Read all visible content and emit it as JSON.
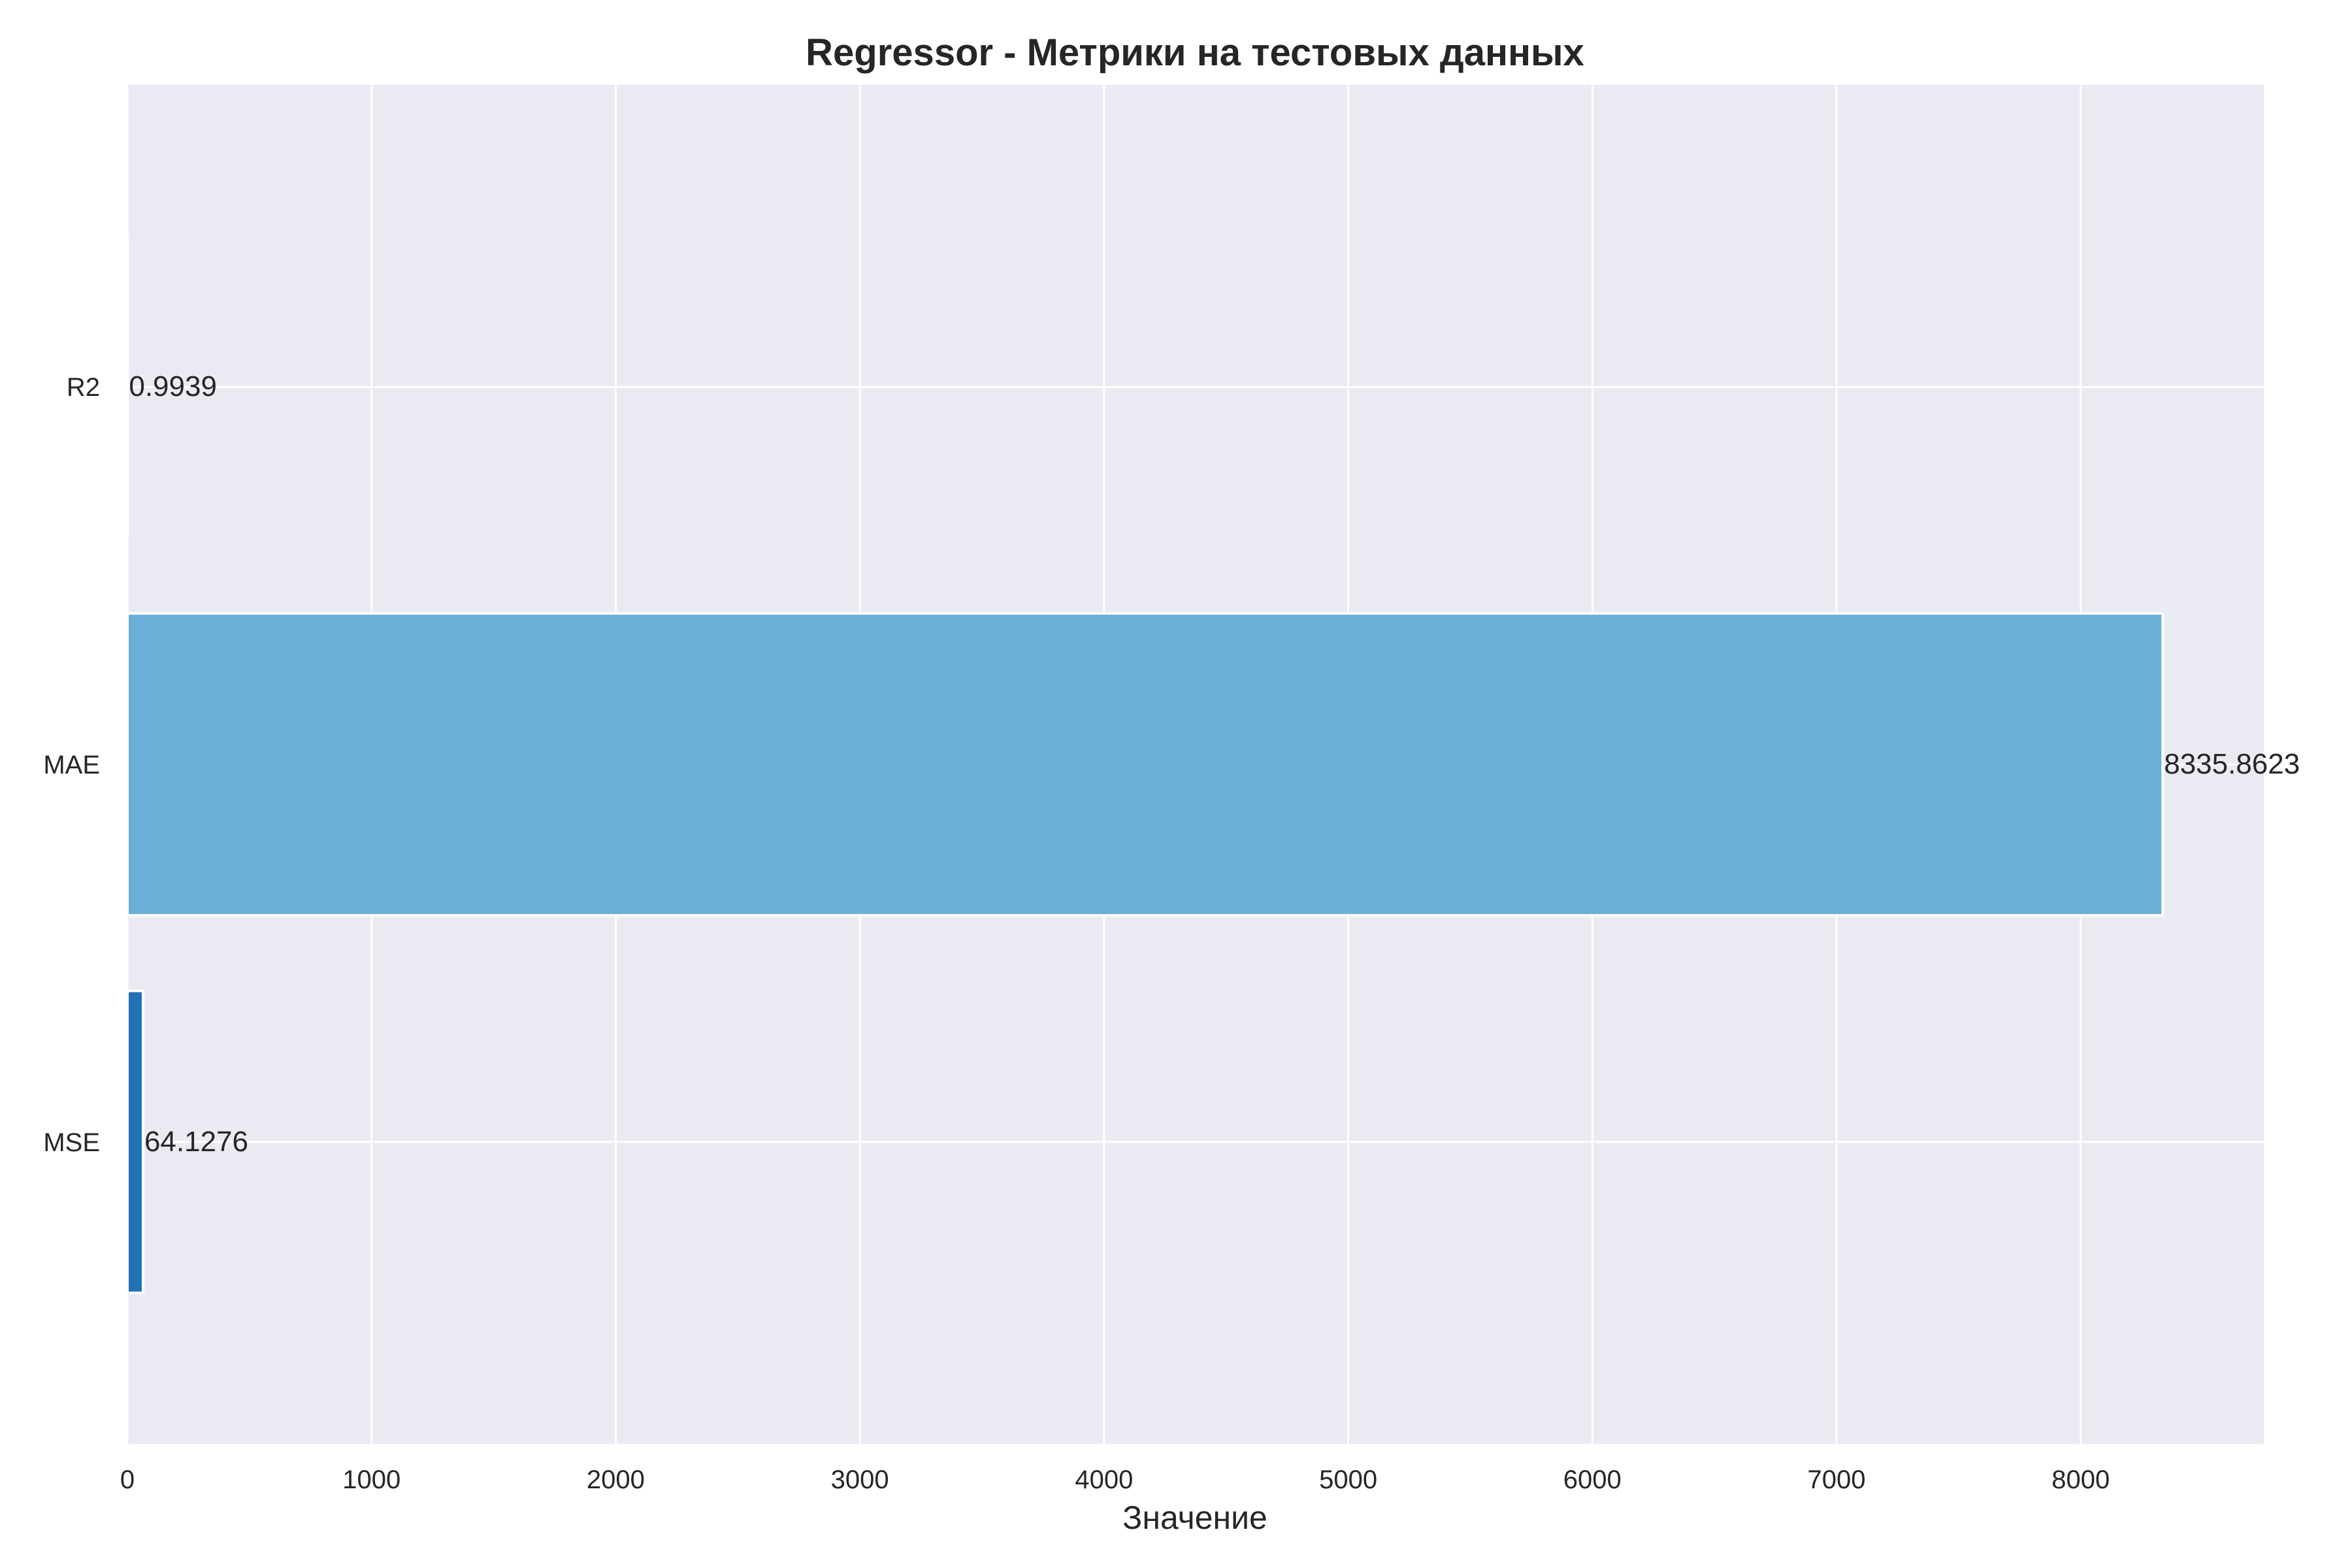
{
  "chart_data": {
    "type": "bar",
    "orientation": "horizontal",
    "title": "Regressor - Метрики на тестовых данных",
    "xlabel": "Значение",
    "ylabel": "",
    "categories": [
      "MSE",
      "MAE",
      "R2"
    ],
    "values": [
      64.1276,
      8335.8623,
      0.9939
    ],
    "value_labels": [
      "64.1276",
      "8335.8623",
      "0.9939"
    ],
    "xlim": [
      0,
      8750
    ],
    "xticks": [
      0,
      1000,
      2000,
      3000,
      4000,
      5000,
      6000,
      7000,
      8000
    ],
    "bar_colors": [
      "#2171b5",
      "#6baed6",
      "#c6dbef"
    ],
    "plot_background": "#eaeaf2",
    "grid": true,
    "grid_color": "#ffffff"
  }
}
